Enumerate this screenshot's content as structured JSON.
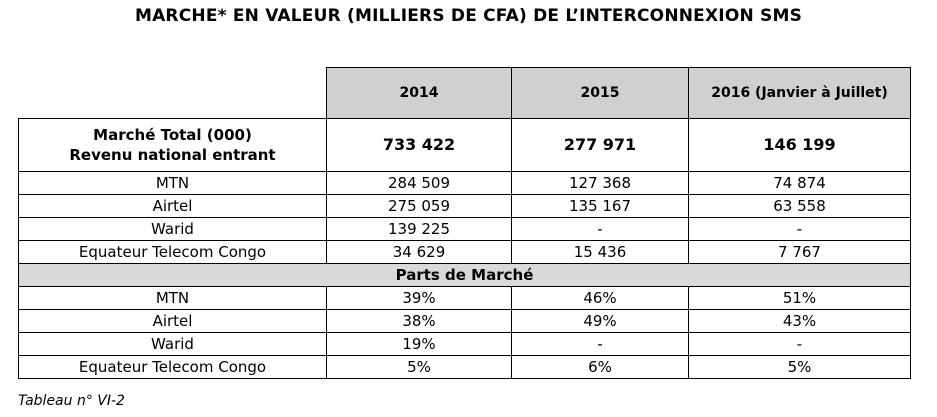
{
  "title": "MARCHE* EN VALEUR (MILLIERS DE CFA) DE L’INTERCONNEXION SMS",
  "columns": [
    "2014",
    "2015",
    "2016 (Janvier à Juillet)"
  ],
  "total": {
    "label_line1": "Marché Total (000)",
    "label_line2": "Revenu national entrant",
    "values": [
      "733 422",
      "277 971",
      "146 199"
    ]
  },
  "revenue_rows": [
    {
      "label": "MTN",
      "values": [
        "284 509",
        "127 368",
        "74 874"
      ]
    },
    {
      "label": "Airtel",
      "values": [
        "275 059",
        "135 167",
        "63 558"
      ]
    },
    {
      "label": "Warid",
      "values": [
        "139 225",
        "-",
        "-"
      ]
    },
    {
      "label": "Equateur Telecom Congo",
      "values": [
        "34 629",
        "15 436",
        "7 767"
      ]
    }
  ],
  "section_label": "Parts de Marché",
  "share_rows": [
    {
      "label": "MTN",
      "values": [
        "39%",
        "46%",
        "51%"
      ]
    },
    {
      "label": "Airtel",
      "values": [
        "38%",
        "49%",
        "43%"
      ]
    },
    {
      "label": "Warid",
      "values": [
        "19%",
        "-",
        "-"
      ]
    },
    {
      "label": "Equateur Telecom Congo",
      "values": [
        "5%",
        "6%",
        "5%"
      ]
    }
  ],
  "caption": "Tableau n° VI-2"
}
